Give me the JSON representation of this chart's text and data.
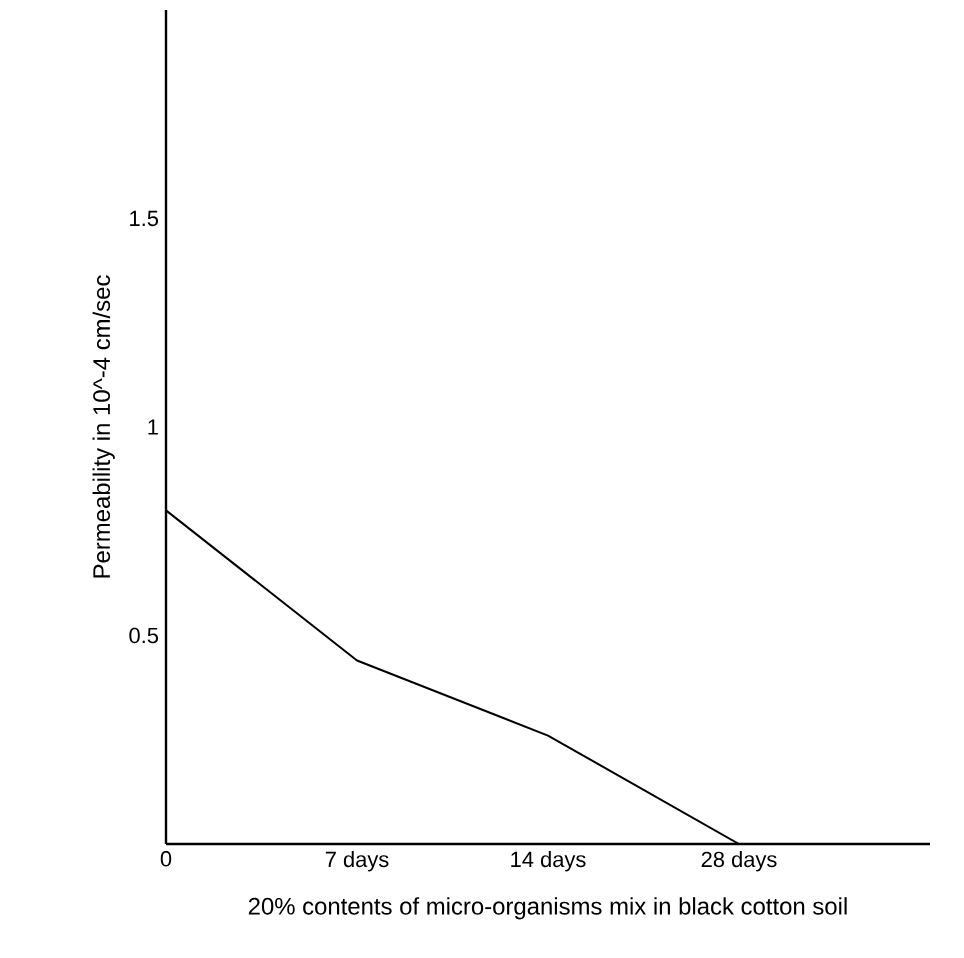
{
  "chart_data": {
    "type": "line",
    "xlabel": "20% contents of micro-organisms mix in black cotton soil",
    "ylabel": "Permeability in 10^-4 cm/sec",
    "categories": [
      "0",
      "7 days",
      "14 days",
      "28 days",
      null
    ],
    "series": [
      {
        "color": "#000000",
        "values": [
          0.8,
          0.44,
          0.26,
          0,
          null
        ]
      }
    ],
    "ylim": [
      0,
      2
    ],
    "yticks": [
      0.5,
      1,
      1.5
    ],
    "grid": false,
    "marker": "none",
    "line_style": "solid"
  }
}
